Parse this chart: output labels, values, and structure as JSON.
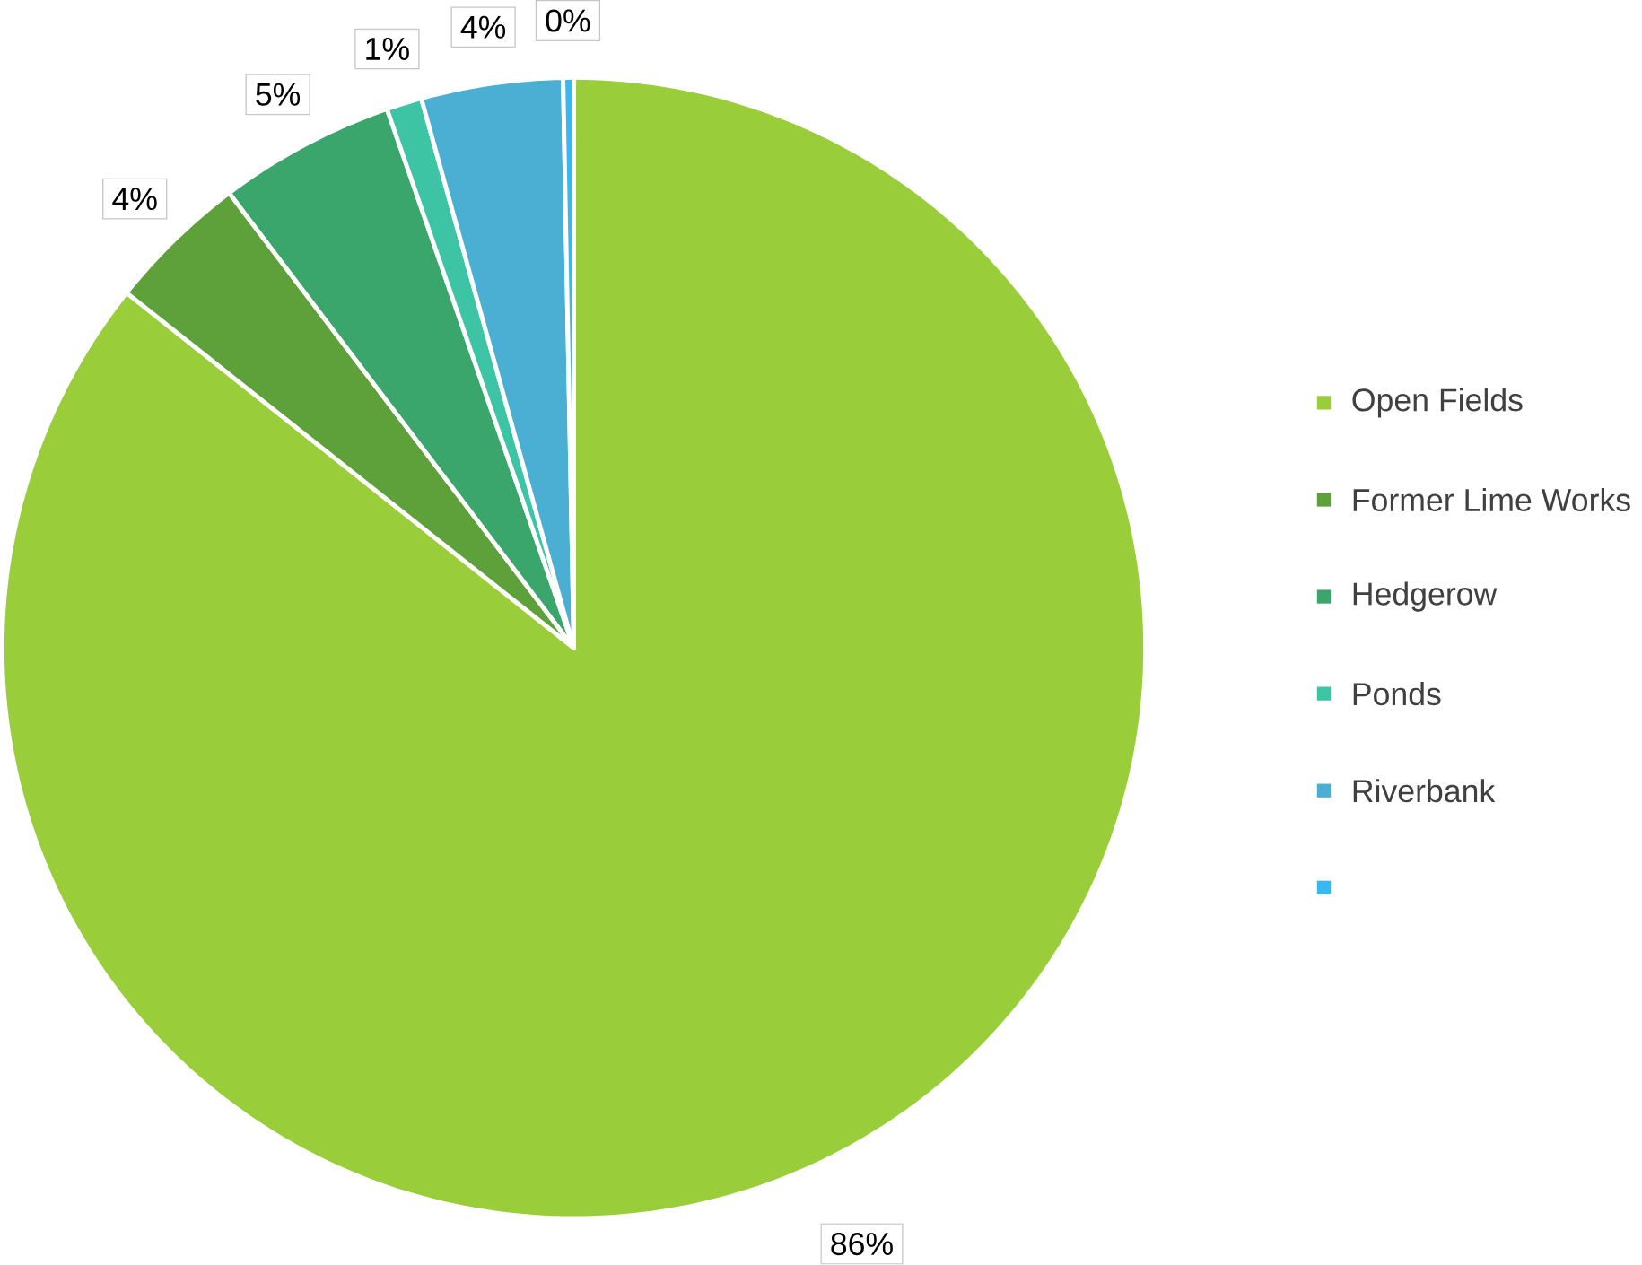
{
  "chart_data": {
    "type": "pie",
    "categories": [
      "Open Fields",
      "Former Lime Works",
      "Hedgerow",
      "Ponds",
      "Riverbank",
      null
    ],
    "values": [
      85.7,
      4,
      5,
      1,
      4,
      0.3
    ],
    "value_labels": [
      "86%",
      "4%",
      "5%",
      "1%",
      "4%",
      "0%"
    ],
    "colors": [
      "#9acd3a",
      "#5ea03a",
      "#3aa66c",
      "#3cc4a4",
      "#4aafd2",
      "#38b8f0"
    ],
    "legend": "right"
  }
}
